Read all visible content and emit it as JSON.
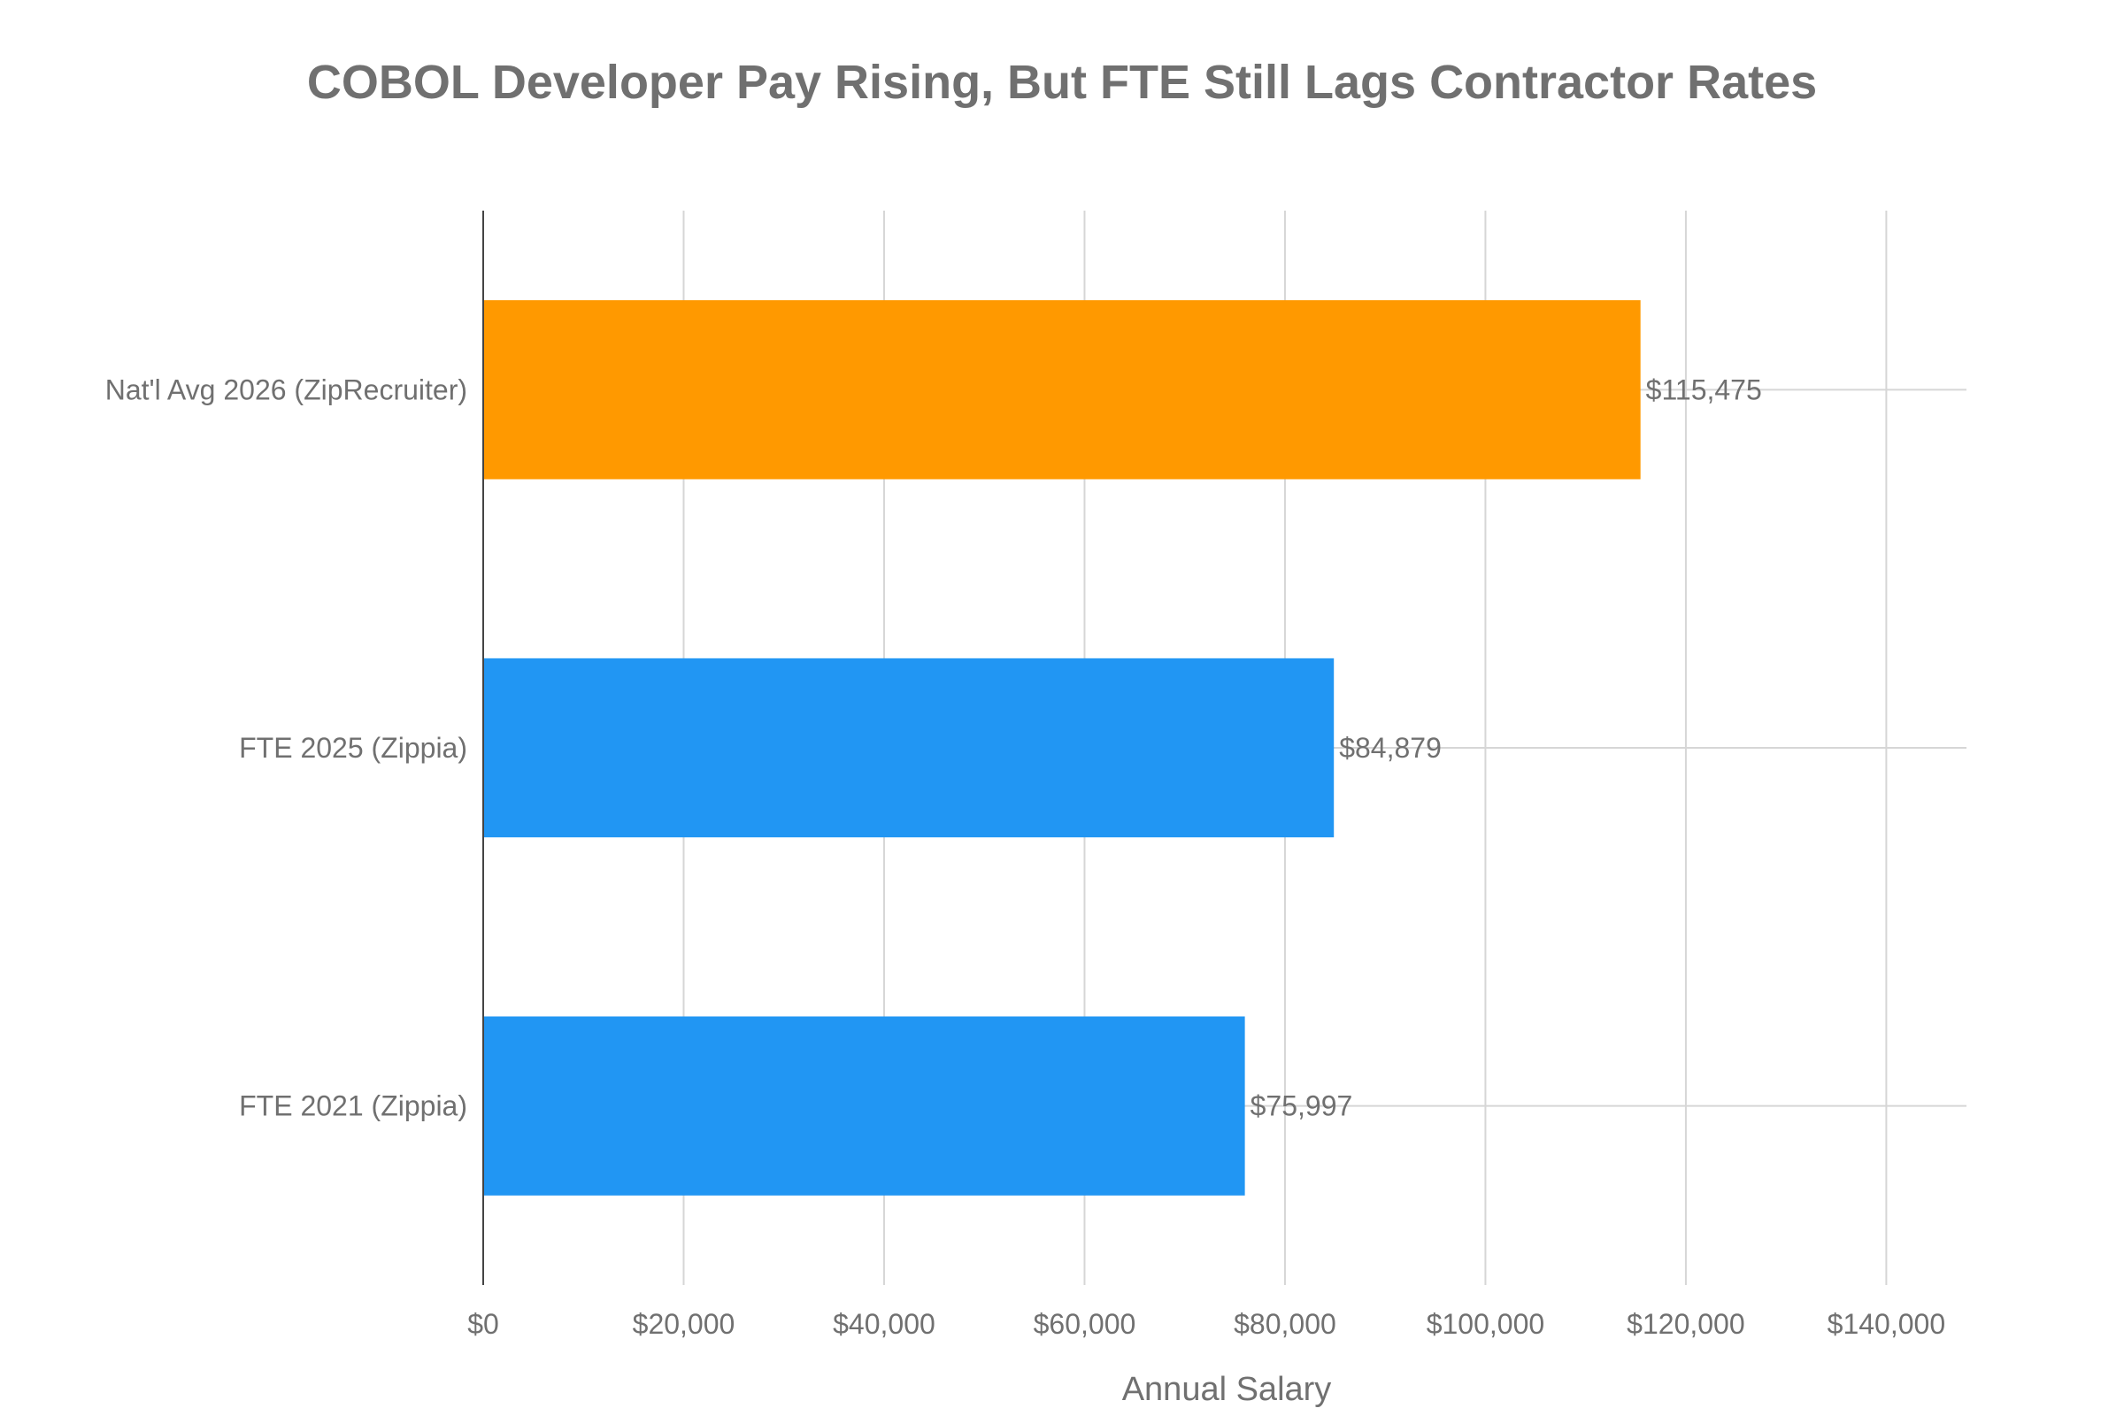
{
  "chart_data": {
    "type": "bar",
    "orientation": "horizontal",
    "title": "COBOL Developer Pay Rising, But FTE Still Lags Contractor Rates",
    "xlabel": "Annual Salary",
    "ylabel": "",
    "xlim": [
      0,
      148000
    ],
    "x_ticks": [
      0,
      20000,
      40000,
      60000,
      80000,
      100000,
      120000,
      140000
    ],
    "x_tick_labels": [
      "$0",
      "$20,000",
      "$40,000",
      "$60,000",
      "$80,000",
      "$100,000",
      "$120,000",
      "$140,000"
    ],
    "grid": true,
    "categories": [
      "Nat'l Avg 2026 (ZipRecruiter)",
      "FTE 2025 (Zippia)",
      "FTE 2021 (Zippia)"
    ],
    "values": [
      115475,
      84879,
      75997
    ],
    "data_labels": [
      "$115,475",
      "$84,879",
      "$75,997"
    ],
    "colors": [
      "#FF9900",
      "#2196F3",
      "#2196F3"
    ]
  }
}
